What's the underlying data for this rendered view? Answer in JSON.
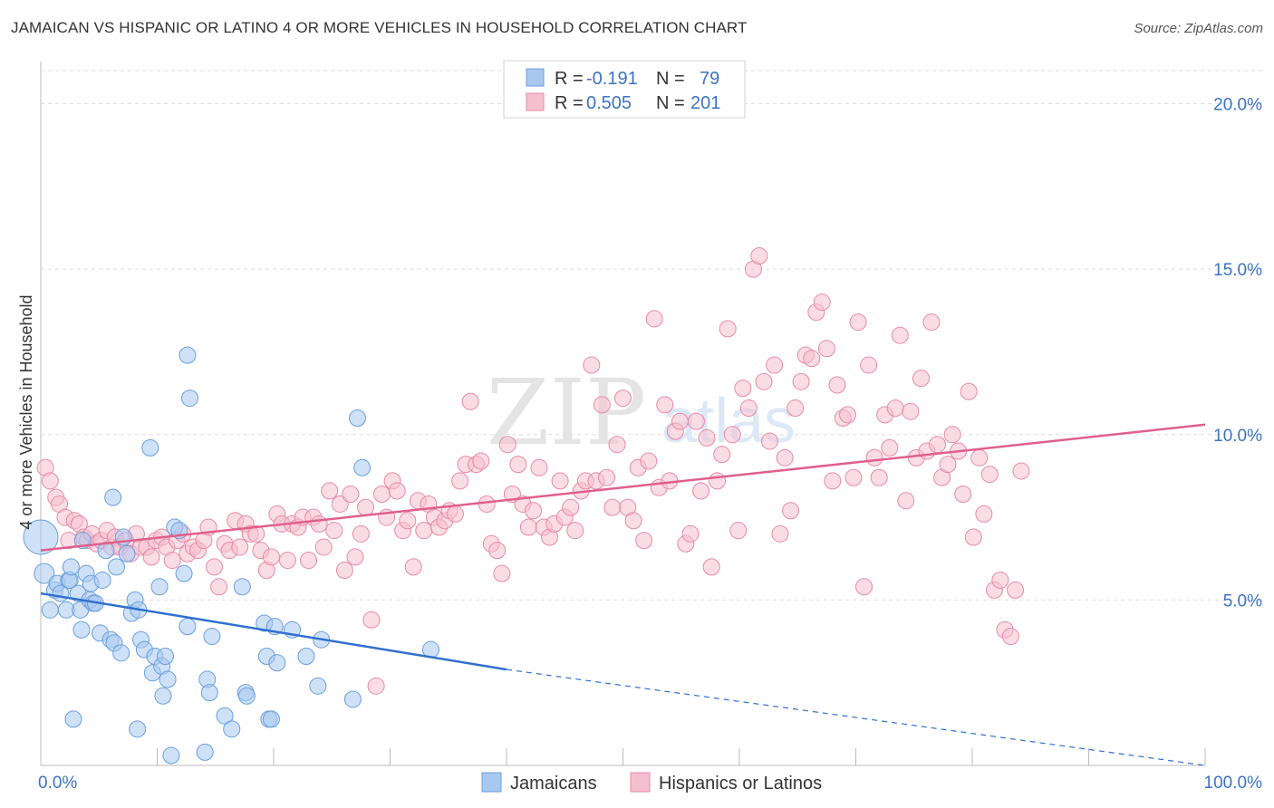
{
  "title": "JAMAICAN VS HISPANIC OR LATINO 4 OR MORE VEHICLES IN HOUSEHOLD CORRELATION CHART",
  "source": "Source: ZipAtlas.com",
  "watermark": {
    "zip": "ZIP",
    "atlas": "atlas"
  },
  "colors": {
    "blue_fill": "#a8c8f0",
    "blue_stroke": "#6a9fdc",
    "blue_line": "#2f6fd0",
    "pink_fill": "#f6bfcf",
    "pink_stroke": "#e88aa6",
    "pink_line": "#e05f8e",
    "tick": "#3d72c4",
    "grid": "#dddddd"
  },
  "stats": {
    "r_label": "R =",
    "n_label": "N =",
    "rows": [
      {
        "r": "-0.191",
        "n": "79"
      },
      {
        "r": "0.505",
        "n": "201"
      }
    ]
  },
  "chart_data": {
    "type": "scatter",
    "title": "JAMAICAN VS HISPANIC OR LATINO 4 OR MORE VEHICLES IN HOUSEHOLD CORRELATION CHART",
    "xlabel": "",
    "ylabel": "4 or more Vehicles in Household",
    "xlim": [
      0,
      100
    ],
    "ylim": [
      0,
      21
    ],
    "x_tick_labels": [
      "0.0%",
      "100.0%"
    ],
    "y_ticks": [
      5,
      10,
      15,
      20
    ],
    "y_tick_labels": [
      "5.0%",
      "10.0%",
      "15.0%",
      "20.0%"
    ],
    "grid": true,
    "legend_position": "bottom",
    "series": [
      {
        "name": "Jamaicans",
        "color": "#a8c8f0",
        "trend": {
          "x": [
            0,
            40
          ],
          "y": [
            5.2,
            2.9
          ],
          "dashed_to": [
            100,
            0.0
          ]
        },
        "points": [
          [
            0,
            6.9
          ],
          [
            0.3,
            5.8
          ],
          [
            0.8,
            4.7
          ],
          [
            1.2,
            5.3
          ],
          [
            1.4,
            5.5
          ],
          [
            1.7,
            5.2
          ],
          [
            2.2,
            4.7
          ],
          [
            2.4,
            5.6
          ],
          [
            2.5,
            5.6
          ],
          [
            2.6,
            6.0
          ],
          [
            2.8,
            1.4
          ],
          [
            3.2,
            5.2
          ],
          [
            3.4,
            4.7
          ],
          [
            3.5,
            4.1
          ],
          [
            3.6,
            6.8
          ],
          [
            3.9,
            5.8
          ],
          [
            4.2,
            5.0
          ],
          [
            4.3,
            5.5
          ],
          [
            4.5,
            4.9
          ],
          [
            4.7,
            4.9
          ],
          [
            5.1,
            4.0
          ],
          [
            5.3,
            5.6
          ],
          [
            5.6,
            6.5
          ],
          [
            6.0,
            3.8
          ],
          [
            6.2,
            8.1
          ],
          [
            6.3,
            3.7
          ],
          [
            6.5,
            6.0
          ],
          [
            6.9,
            3.4
          ],
          [
            7.1,
            6.9
          ],
          [
            7.4,
            6.4
          ],
          [
            7.8,
            4.6
          ],
          [
            8.1,
            5.0
          ],
          [
            8.3,
            1.1
          ],
          [
            8.4,
            4.7
          ],
          [
            8.6,
            3.8
          ],
          [
            8.9,
            3.5
          ],
          [
            9.4,
            9.6
          ],
          [
            9.6,
            2.8
          ],
          [
            9.8,
            3.3
          ],
          [
            10.2,
            5.4
          ],
          [
            10.4,
            3.0
          ],
          [
            10.5,
            2.1
          ],
          [
            10.7,
            3.3
          ],
          [
            10.9,
            2.6
          ],
          [
            11.2,
            0.3
          ],
          [
            11.5,
            7.2
          ],
          [
            11.9,
            7.1
          ],
          [
            12.3,
            5.8
          ],
          [
            12.6,
            12.4
          ],
          [
            12.8,
            11.1
          ],
          [
            12.6,
            4.2
          ],
          [
            14.1,
            0.4
          ],
          [
            14.3,
            2.6
          ],
          [
            14.5,
            2.2
          ],
          [
            14.7,
            3.9
          ],
          [
            15.8,
            1.5
          ],
          [
            16.4,
            1.1
          ],
          [
            17.3,
            5.4
          ],
          [
            17.6,
            2.2
          ],
          [
            17.7,
            2.1
          ],
          [
            19.2,
            4.3
          ],
          [
            19.4,
            3.3
          ],
          [
            19.6,
            1.4
          ],
          [
            19.8,
            1.4
          ],
          [
            20.1,
            4.2
          ],
          [
            20.3,
            3.1
          ],
          [
            21.6,
            4.1
          ],
          [
            22.8,
            3.3
          ],
          [
            23.8,
            2.4
          ],
          [
            24.1,
            3.8
          ],
          [
            27.2,
            10.5
          ],
          [
            26.8,
            2.0
          ],
          [
            27.6,
            9.0
          ],
          [
            33.5,
            3.5
          ]
        ]
      },
      {
        "name": "Hispanics or Latinos",
        "color": "#f6bfcf",
        "trend": {
          "x": [
            0,
            100
          ],
          "y": [
            6.5,
            10.3
          ]
        },
        "points": [
          [
            0.4,
            9.0
          ],
          [
            0.8,
            8.6
          ],
          [
            1.3,
            8.1
          ],
          [
            1.6,
            7.9
          ],
          [
            2.1,
            7.5
          ],
          [
            2.4,
            6.8
          ],
          [
            2.9,
            7.4
          ],
          [
            3.3,
            7.3
          ],
          [
            3.7,
            6.9
          ],
          [
            4.0,
            6.8
          ],
          [
            4.4,
            7.0
          ],
          [
            4.8,
            6.7
          ],
          [
            5.2,
            6.8
          ],
          [
            5.7,
            7.1
          ],
          [
            6.1,
            6.6
          ],
          [
            6.4,
            6.9
          ],
          [
            6.8,
            6.6
          ],
          [
            7.3,
            6.8
          ],
          [
            7.7,
            6.4
          ],
          [
            8.2,
            7.0
          ],
          [
            8.6,
            6.6
          ],
          [
            9.1,
            6.6
          ],
          [
            9.5,
            6.3
          ],
          [
            9.9,
            6.8
          ],
          [
            10.4,
            6.9
          ],
          [
            10.8,
            6.6
          ],
          [
            11.3,
            6.2
          ],
          [
            11.7,
            6.8
          ],
          [
            12.2,
            7.0
          ],
          [
            12.6,
            6.4
          ],
          [
            13.1,
            6.6
          ],
          [
            13.5,
            6.5
          ],
          [
            14.0,
            6.8
          ],
          [
            14.4,
            7.2
          ],
          [
            14.9,
            6.0
          ],
          [
            15.3,
            5.4
          ],
          [
            15.8,
            6.7
          ],
          [
            16.2,
            6.5
          ],
          [
            16.7,
            7.4
          ],
          [
            17.1,
            6.6
          ],
          [
            17.6,
            7.3
          ],
          [
            18.0,
            7.0
          ],
          [
            18.5,
            7.0
          ],
          [
            18.9,
            6.5
          ],
          [
            19.4,
            5.9
          ],
          [
            19.8,
            6.3
          ],
          [
            20.3,
            7.6
          ],
          [
            20.7,
            7.3
          ],
          [
            21.2,
            6.2
          ],
          [
            21.6,
            7.3
          ],
          [
            22.1,
            7.2
          ],
          [
            22.5,
            7.5
          ],
          [
            23.0,
            6.2
          ],
          [
            23.4,
            7.5
          ],
          [
            23.9,
            7.3
          ],
          [
            24.3,
            6.6
          ],
          [
            24.8,
            8.3
          ],
          [
            25.2,
            7.1
          ],
          [
            25.7,
            7.9
          ],
          [
            26.1,
            5.9
          ],
          [
            26.6,
            8.2
          ],
          [
            27.0,
            6.3
          ],
          [
            27.5,
            7.0
          ],
          [
            27.9,
            7.8
          ],
          [
            28.4,
            4.4
          ],
          [
            28.8,
            2.4
          ],
          [
            29.3,
            8.2
          ],
          [
            29.7,
            7.5
          ],
          [
            30.2,
            8.6
          ],
          [
            30.6,
            8.3
          ],
          [
            31.1,
            7.1
          ],
          [
            31.5,
            7.4
          ],
          [
            32.0,
            6.0
          ],
          [
            32.4,
            8.0
          ],
          [
            32.9,
            7.1
          ],
          [
            33.3,
            7.9
          ],
          [
            33.8,
            7.5
          ],
          [
            34.2,
            7.2
          ],
          [
            34.7,
            7.4
          ],
          [
            35.1,
            7.7
          ],
          [
            35.6,
            7.6
          ],
          [
            36.0,
            8.6
          ],
          [
            36.5,
            9.1
          ],
          [
            36.9,
            11.0
          ],
          [
            37.4,
            9.1
          ],
          [
            37.8,
            9.2
          ],
          [
            38.3,
            7.9
          ],
          [
            38.7,
            6.7
          ],
          [
            39.2,
            6.5
          ],
          [
            39.6,
            5.8
          ],
          [
            40.1,
            9.7
          ],
          [
            40.5,
            8.2
          ],
          [
            41.0,
            9.1
          ],
          [
            41.4,
            7.9
          ],
          [
            41.9,
            7.2
          ],
          [
            42.3,
            7.7
          ],
          [
            42.8,
            9.0
          ],
          [
            43.2,
            7.2
          ],
          [
            43.7,
            6.9
          ],
          [
            44.1,
            7.3
          ],
          [
            44.6,
            8.6
          ],
          [
            45.0,
            7.5
          ],
          [
            45.5,
            7.8
          ],
          [
            45.9,
            7.1
          ],
          [
            46.4,
            8.3
          ],
          [
            46.8,
            8.6
          ],
          [
            47.3,
            12.1
          ],
          [
            47.7,
            8.6
          ],
          [
            48.2,
            10.9
          ],
          [
            48.6,
            8.7
          ],
          [
            49.1,
            7.8
          ],
          [
            49.5,
            9.7
          ],
          [
            50.0,
            11.1
          ],
          [
            50.4,
            7.8
          ],
          [
            50.9,
            7.4
          ],
          [
            51.3,
            9.0
          ],
          [
            51.8,
            6.8
          ],
          [
            52.2,
            9.2
          ],
          [
            52.7,
            13.5
          ],
          [
            53.1,
            8.4
          ],
          [
            53.6,
            10.9
          ],
          [
            54.0,
            8.6
          ],
          [
            54.5,
            10.1
          ],
          [
            54.9,
            10.4
          ],
          [
            55.4,
            6.7
          ],
          [
            55.8,
            7.0
          ],
          [
            56.3,
            10.4
          ],
          [
            56.7,
            8.3
          ],
          [
            57.2,
            9.9
          ],
          [
            57.6,
            6.0
          ],
          [
            58.1,
            8.6
          ],
          [
            58.5,
            9.4
          ],
          [
            59.0,
            13.2
          ],
          [
            59.4,
            10.0
          ],
          [
            59.9,
            7.1
          ],
          [
            60.3,
            11.4
          ],
          [
            60.8,
            10.8
          ],
          [
            61.2,
            15.0
          ],
          [
            61.7,
            15.4
          ],
          [
            62.1,
            11.6
          ],
          [
            62.6,
            9.8
          ],
          [
            63.0,
            12.1
          ],
          [
            63.5,
            7.0
          ],
          [
            63.9,
            9.3
          ],
          [
            64.4,
            7.7
          ],
          [
            64.8,
            10.8
          ],
          [
            65.3,
            11.6
          ],
          [
            65.7,
            12.4
          ],
          [
            66.2,
            12.3
          ],
          [
            66.6,
            13.7
          ],
          [
            67.1,
            14.0
          ],
          [
            67.5,
            12.6
          ],
          [
            68.0,
            8.6
          ],
          [
            68.4,
            11.5
          ],
          [
            68.9,
            10.5
          ],
          [
            69.3,
            10.6
          ],
          [
            69.8,
            8.7
          ],
          [
            70.2,
            13.4
          ],
          [
            70.7,
            5.4
          ],
          [
            71.1,
            12.1
          ],
          [
            71.6,
            9.3
          ],
          [
            72.0,
            8.7
          ],
          [
            72.5,
            10.6
          ],
          [
            72.9,
            9.6
          ],
          [
            73.4,
            10.8
          ],
          [
            73.8,
            13.0
          ],
          [
            74.3,
            8.0
          ],
          [
            74.7,
            10.7
          ],
          [
            75.2,
            9.3
          ],
          [
            75.6,
            11.7
          ],
          [
            76.1,
            9.5
          ],
          [
            76.5,
            13.4
          ],
          [
            77.0,
            9.7
          ],
          [
            77.4,
            8.7
          ],
          [
            77.9,
            9.1
          ],
          [
            78.3,
            10.0
          ],
          [
            78.8,
            9.5
          ],
          [
            79.2,
            8.2
          ],
          [
            79.7,
            11.3
          ],
          [
            80.1,
            6.9
          ],
          [
            80.6,
            9.3
          ],
          [
            81.0,
            7.6
          ],
          [
            81.5,
            8.8
          ],
          [
            81.9,
            5.3
          ],
          [
            82.4,
            5.6
          ],
          [
            82.8,
            4.1
          ],
          [
            83.3,
            3.9
          ],
          [
            83.7,
            5.3
          ],
          [
            84.2,
            8.9
          ]
        ]
      }
    ]
  },
  "legend": {
    "items": [
      {
        "label": "Jamaicans"
      },
      {
        "label": "Hispanics or Latinos"
      }
    ]
  }
}
